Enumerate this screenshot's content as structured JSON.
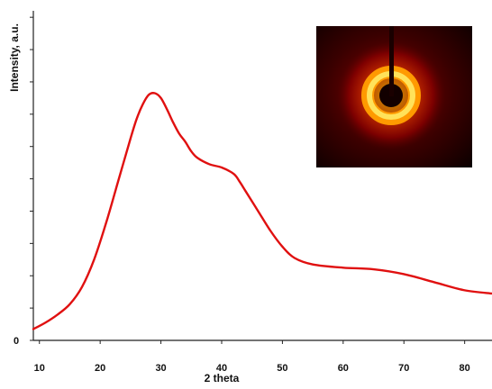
{
  "chart_data": {
    "type": "line",
    "xlabel": "2 theta",
    "ylabel": "Intensity, a.u.",
    "xlim": [
      9,
      84.5
    ],
    "ylim": [
      0,
      10.2
    ],
    "x_ticks": [
      10,
      20,
      30,
      40,
      50,
      60,
      70,
      80
    ],
    "y_tick_values": [
      0,
      1,
      2,
      3,
      4,
      5,
      6,
      7,
      8,
      9,
      10
    ],
    "y_tick_labels": [
      "0"
    ],
    "grid": false,
    "legend": "none",
    "colors": {
      "line": "#e01010",
      "axis": "#222222"
    },
    "series": [
      {
        "x": [
          9,
          11,
          13,
          15,
          17,
          19,
          21,
          23,
          25,
          26,
          27,
          28,
          29,
          30,
          31,
          32,
          33,
          34,
          35,
          36,
          38,
          40,
          42,
          43,
          44,
          46,
          48,
          50,
          52,
          55,
          60,
          65,
          70,
          75,
          80,
          84.5
        ],
        "y": [
          0.35,
          0.55,
          0.8,
          1.12,
          1.65,
          2.5,
          3.65,
          4.95,
          6.25,
          6.85,
          7.3,
          7.6,
          7.65,
          7.5,
          7.15,
          6.75,
          6.4,
          6.15,
          5.85,
          5.65,
          5.45,
          5.35,
          5.15,
          4.9,
          4.6,
          4.0,
          3.4,
          2.9,
          2.55,
          2.35,
          2.25,
          2.2,
          2.05,
          1.8,
          1.55,
          1.45
        ]
      }
    ],
    "inset": {
      "type": "diffraction-pattern-image",
      "colors": [
        "#000000",
        "#5a0000",
        "#a00000",
        "#e03000",
        "#ff8c00",
        "#ffd400",
        "#fff3a0"
      ]
    }
  }
}
